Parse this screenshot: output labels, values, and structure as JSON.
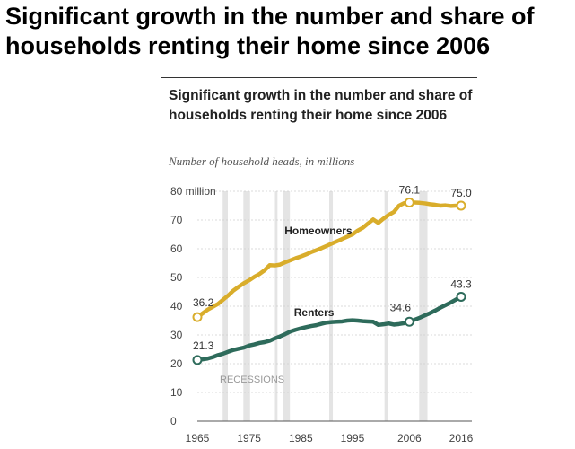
{
  "headline": "Significant growth in the number and share of households renting their home since 2006",
  "chart_data": {
    "type": "line",
    "title": "Significant growth in the number and share of households renting their home since 2006",
    "subtitle": "Number of household heads, in millions",
    "ylim": [
      0,
      80
    ],
    "xlim": [
      1965,
      2016
    ],
    "y_ticks": [
      {
        "value": 0,
        "label": "0"
      },
      {
        "value": 10,
        "label": "10"
      },
      {
        "value": 20,
        "label": "20"
      },
      {
        "value": 30,
        "label": "30"
      },
      {
        "value": 40,
        "label": "40"
      },
      {
        "value": 50,
        "label": "50"
      },
      {
        "value": 60,
        "label": "60"
      },
      {
        "value": 70,
        "label": "70"
      },
      {
        "value": 80,
        "label": "80 million"
      }
    ],
    "x_ticks": [
      {
        "value": 1965,
        "label": "1965"
      },
      {
        "value": 1975,
        "label": "1975"
      },
      {
        "value": 1985,
        "label": "1985"
      },
      {
        "value": 1995,
        "label": "1995"
      },
      {
        "value": 2006,
        "label": "2006"
      },
      {
        "value": 2016,
        "label": "2016"
      }
    ],
    "grid": true,
    "recessions_label": "RECESSIONS",
    "recessions": [
      [
        1969.9,
        1970.9
      ],
      [
        1973.9,
        1975.2
      ],
      [
        1980.0,
        1980.5
      ],
      [
        1981.5,
        1982.9
      ],
      [
        1990.5,
        1991.2
      ],
      [
        2001.2,
        2001.9
      ],
      [
        2007.9,
        2009.5
      ]
    ],
    "series": [
      {
        "name": "Homeowners",
        "color": "#d9ad2b",
        "x": [
          1965,
          1966,
          1967,
          1968,
          1969,
          1970,
          1971,
          1972,
          1973,
          1974,
          1975,
          1976,
          1977,
          1978,
          1979,
          1980,
          1981,
          1982,
          1983,
          1984,
          1985,
          1986,
          1987,
          1988,
          1989,
          1990,
          1991,
          1992,
          1993,
          1994,
          1995,
          1996,
          1997,
          1998,
          1999,
          2000,
          2001,
          2002,
          2003,
          2004,
          2005,
          2006,
          2007,
          2008,
          2009,
          2010,
          2011,
          2012,
          2013,
          2014,
          2015,
          2016
        ],
        "y": [
          36.2,
          37.5,
          38.8,
          39.8,
          40.8,
          42.3,
          43.8,
          45.5,
          46.8,
          48.0,
          49.0,
          50.2,
          51.2,
          52.5,
          54.3,
          54.2,
          54.5,
          55.3,
          56.0,
          56.7,
          57.3,
          58.0,
          58.8,
          59.5,
          60.2,
          61.0,
          61.8,
          62.6,
          63.4,
          64.2,
          65.0,
          66.3,
          67.3,
          68.8,
          70.2,
          69.0,
          70.5,
          71.8,
          72.8,
          75.0,
          75.9,
          76.1,
          76.1,
          76.0,
          75.8,
          75.5,
          75.3,
          75.0,
          75.1,
          74.9,
          75.0,
          75.0
        ],
        "labels": [
          {
            "x": 1965,
            "text": "36.2"
          },
          {
            "x": 2006,
            "text": "76.1"
          },
          {
            "x": 2016,
            "text": "75.0"
          }
        ]
      },
      {
        "name": "Renters",
        "color": "#2e6b5b",
        "x": [
          1965,
          1966,
          1967,
          1968,
          1969,
          1970,
          1971,
          1972,
          1973,
          1974,
          1975,
          1976,
          1977,
          1978,
          1979,
          1980,
          1981,
          1982,
          1983,
          1984,
          1985,
          1986,
          1987,
          1988,
          1989,
          1990,
          1991,
          1992,
          1993,
          1994,
          1995,
          1996,
          1997,
          1998,
          1999,
          2000,
          2001,
          2002,
          2003,
          2004,
          2005,
          2006,
          2007,
          2008,
          2009,
          2010,
          2011,
          2012,
          2013,
          2014,
          2015,
          2016
        ],
        "y": [
          21.3,
          21.5,
          21.8,
          22.3,
          23.0,
          23.5,
          24.2,
          24.8,
          25.2,
          25.6,
          26.3,
          26.7,
          27.2,
          27.5,
          28.0,
          28.8,
          29.5,
          30.3,
          31.2,
          31.8,
          32.3,
          32.7,
          33.1,
          33.4,
          33.9,
          34.3,
          34.5,
          34.6,
          34.7,
          35.0,
          35.1,
          35.0,
          34.8,
          34.7,
          34.6,
          33.5,
          33.7,
          34.0,
          33.6,
          33.8,
          34.1,
          34.6,
          35.3,
          36.0,
          36.8,
          37.6,
          38.5,
          39.5,
          40.4,
          41.3,
          42.3,
          43.3
        ],
        "labels": [
          {
            "x": 1965,
            "text": "21.3"
          },
          {
            "x": 2006,
            "text": "34.6"
          },
          {
            "x": 2016,
            "text": "43.3"
          }
        ]
      }
    ]
  }
}
